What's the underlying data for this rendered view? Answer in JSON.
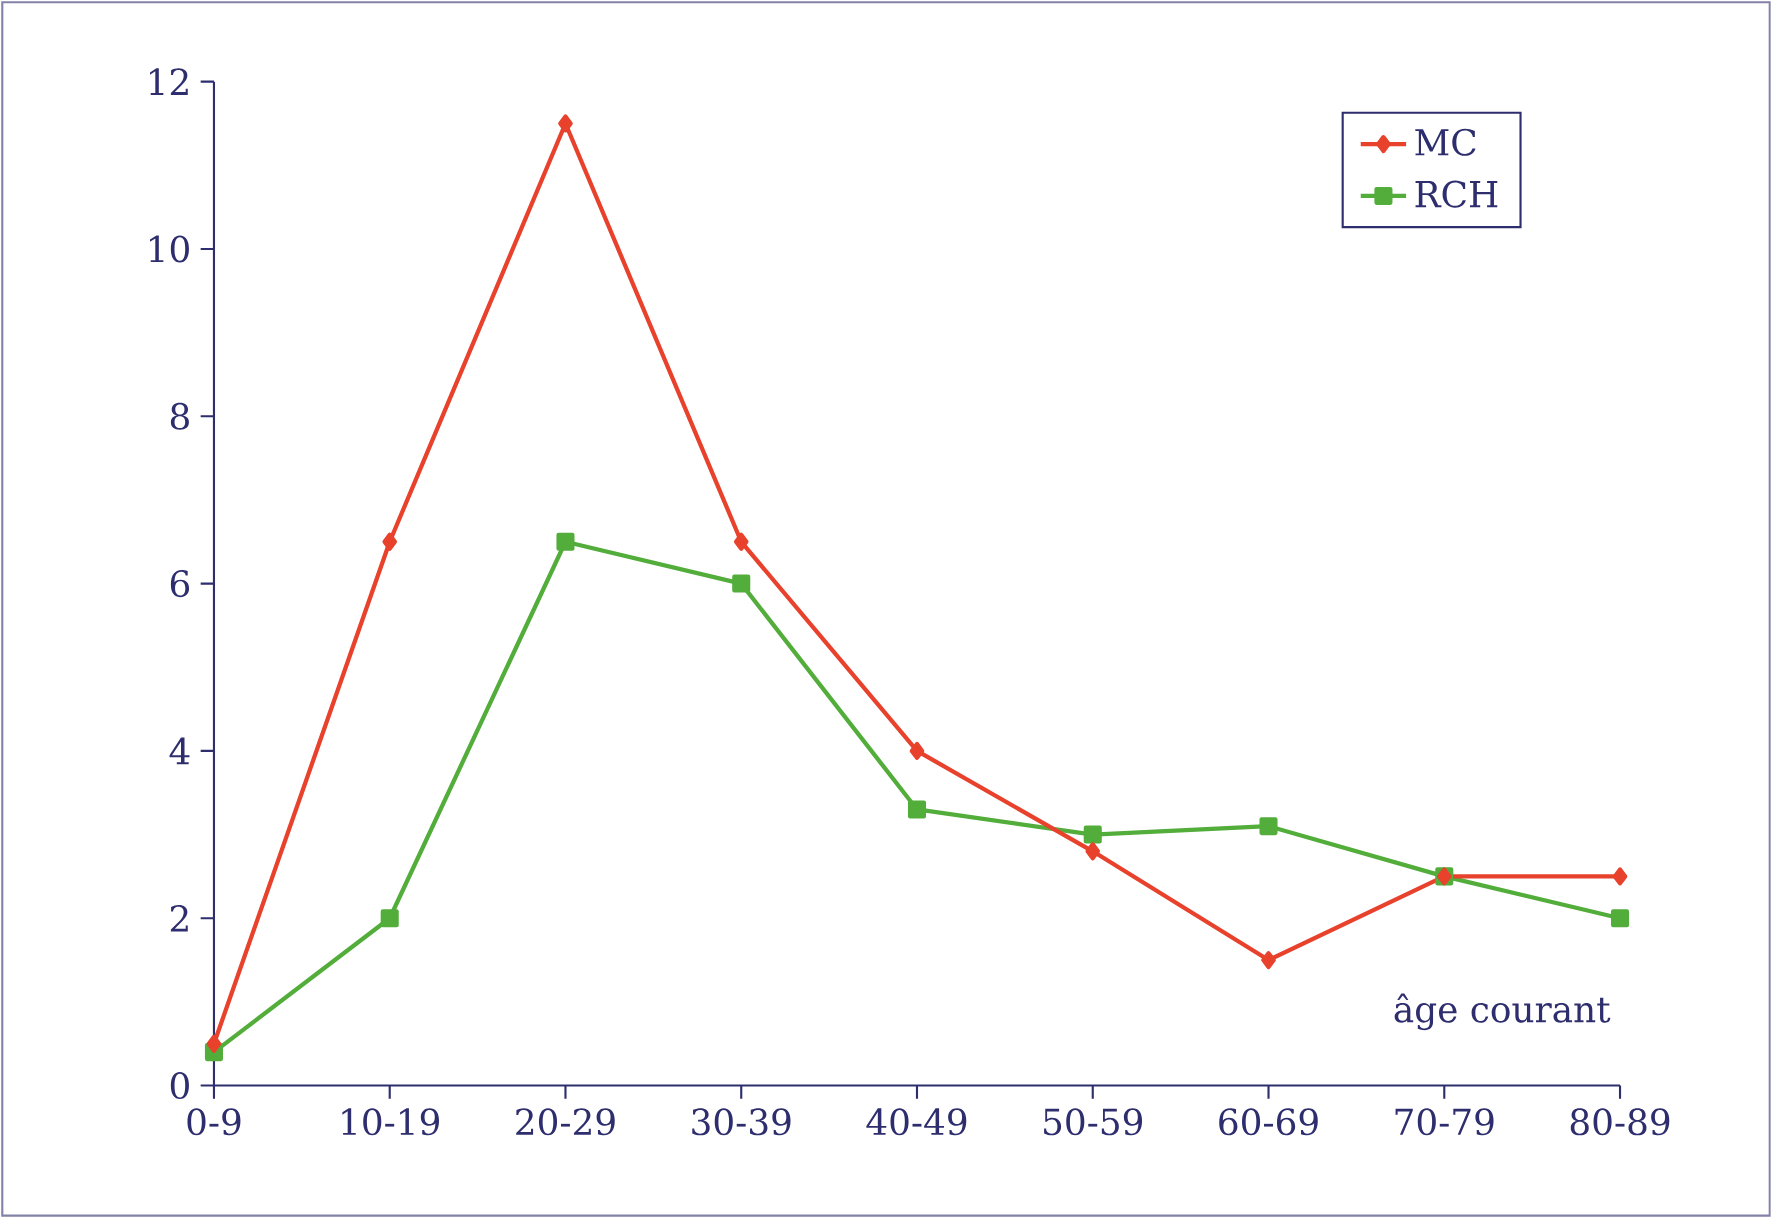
{
  "chart_data": {
    "type": "line",
    "xlabel": "âge courant",
    "categories": [
      "0-9",
      "10-19",
      "20-29",
      "30-39",
      "40-49",
      "50-59",
      "60-69",
      "70-79",
      "80-89"
    ],
    "series": [
      {
        "name": "MC",
        "color": "#e8412c",
        "marker": "diamond",
        "values": [
          0.5,
          6.5,
          11.5,
          6.5,
          4,
          2.8,
          1.5,
          2.5,
          2.5
        ]
      },
      {
        "name": "RCH",
        "color": "#52ad3a",
        "marker": "square",
        "values": [
          0.4,
          2,
          6.5,
          6,
          3.3,
          3,
          3.1,
          2.5,
          2
        ]
      }
    ],
    "ylim": [
      0,
      12
    ],
    "yticks": [
      0,
      2,
      4,
      6,
      8,
      10,
      12
    ],
    "grid": false,
    "legend": "top right",
    "line_style": "solid"
  }
}
